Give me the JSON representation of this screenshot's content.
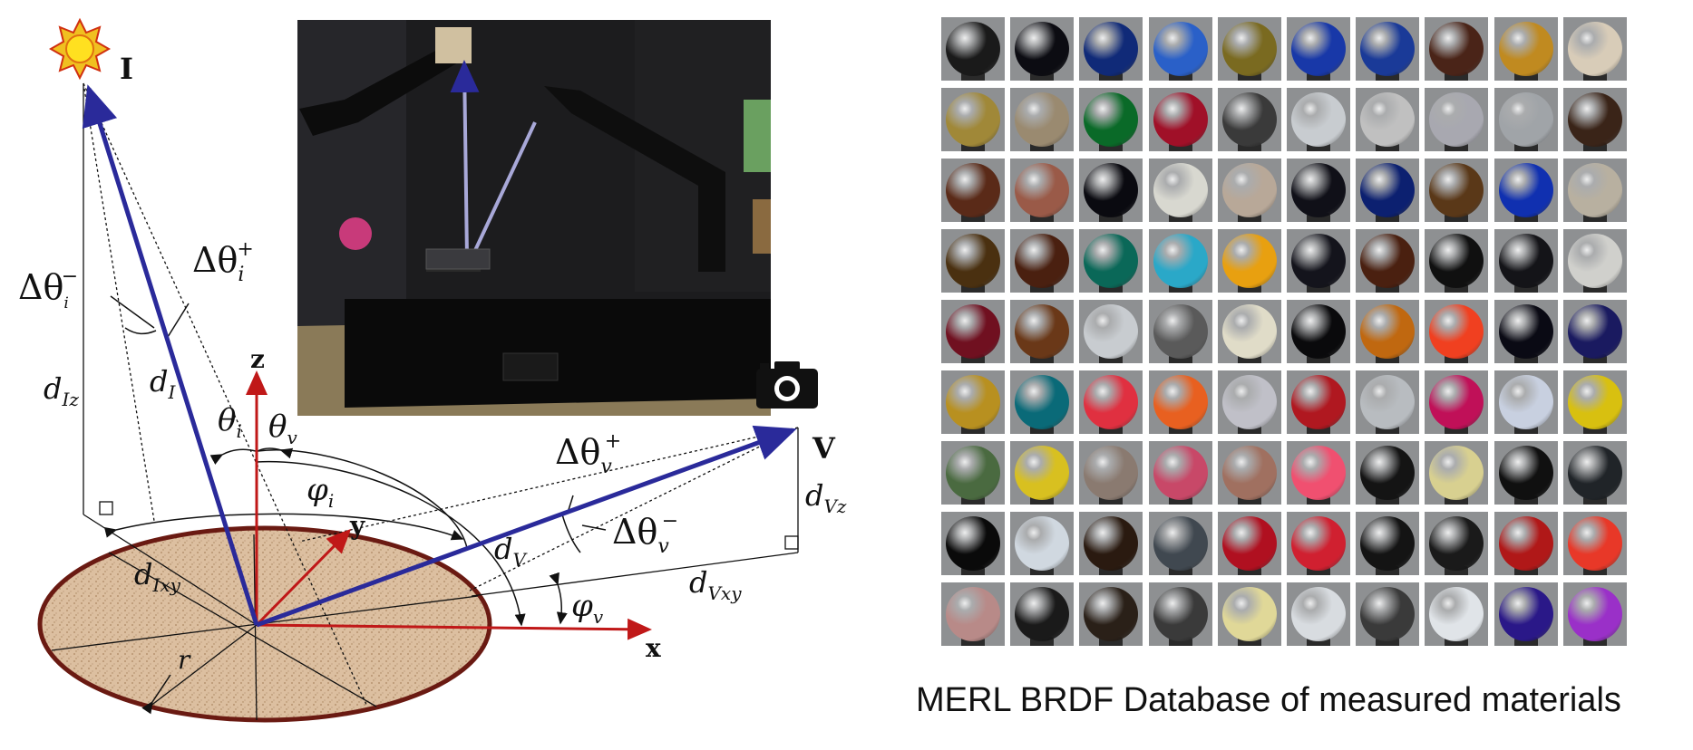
{
  "diagram": {
    "light_label": "I",
    "viewer_label": "V",
    "axis_z": "z",
    "axis_y": "y",
    "axis_x": "x",
    "radius_label": "r",
    "labels": {
      "d_theta_i_minus": {
        "base": "Δθ",
        "sub": "i",
        "sup": "−"
      },
      "d_theta_i_plus": {
        "base": "Δθ",
        "sub": "i",
        "sup": "+"
      },
      "d_theta_v_plus": {
        "base": "Δθ",
        "sub": "v",
        "sup": "+"
      },
      "d_theta_v_minus": {
        "base": "Δθ",
        "sub": "v",
        "sup": "−"
      },
      "d_I": {
        "base": "d",
        "sub": "I"
      },
      "d_Iz": {
        "base": "d",
        "sub": "Iz"
      },
      "d_Ixy": {
        "base": "d",
        "sub": "Ixy"
      },
      "d_V": {
        "base": "d",
        "sub": "V"
      },
      "d_Vz": {
        "base": "d",
        "sub": "Vz"
      },
      "d_Vxy": {
        "base": "d",
        "sub": "Vxy"
      },
      "theta_i": {
        "base": "θ",
        "sub": "i"
      },
      "theta_v": {
        "base": "θ",
        "sub": "v"
      },
      "phi_i": {
        "base": "φ",
        "sub": "i"
      },
      "phi_v": {
        "base": "φ",
        "sub": "v"
      }
    },
    "icons": {
      "light": "sun-icon",
      "viewer": "camera-icon"
    },
    "colors": {
      "ray": "#2a2a9a",
      "axis": "#c01818",
      "disk_fill": "#dcbfa0",
      "disk_edge": "#6a1a12"
    }
  },
  "caption": "MERL BRDF Database of measured materials",
  "materials": {
    "rows": [
      [
        "#1a1a1a",
        "#0c0c12",
        "#102a78",
        "#2a60c8",
        "#7a6a20",
        "#1838a8",
        "#1a3a98",
        "#4a2418",
        "#c08a20",
        "#d8ccb8"
      ],
      [
        "#a08838",
        "#9a8a70",
        "#0a6a28",
        "#a01028",
        "#3a3a3a",
        "#c8ccd0",
        "#c0c0c0",
        "#a8a8b0",
        "#a0a4a8",
        "#3a2418"
      ],
      [
        "#5a2a18",
        "#9a5a48",
        "#0a0a10",
        "#d8d8d0",
        "#b8a898",
        "#101018",
        "#0c2070",
        "#5a3818",
        "#1030b0",
        "#b8b0a0"
      ],
      [
        "#4a3010",
        "#4a2010",
        "#0a6858",
        "#2aa8c8",
        "#e8a010",
        "#14141c",
        "#4a2010",
        "#101010",
        "#141418",
        "#d0d0cc"
      ],
      [
        "#701020",
        "#6a3818",
        "#c8ccd0",
        "#5a5a5a",
        "#e0dcc8",
        "#0a0a0c",
        "#c06810",
        "#f04020",
        "#0a0a14",
        "#1a1a60"
      ],
      [
        "#b89020",
        "#0a6a78",
        "#e03040",
        "#e86020",
        "#c0c0c8",
        "#b01820",
        "#b8bcc0",
        "#c01058",
        "#c8d0e0",
        "#d8c010"
      ],
      [
        "#4a6a40",
        "#d8c020",
        "#8a7a70",
        "#c84868",
        "#a07060",
        "#f05070",
        "#141414",
        "#d8d090",
        "#101010",
        "#202428"
      ],
      [
        "#0a0a0a",
        "#d0d8e0",
        "#2a1a10",
        "#404850",
        "#b01020",
        "#d02030",
        "#141414",
        "#1a1a1a",
        "#b01818",
        "#e83828"
      ],
      [
        "#b88a88",
        "#1a1a1a",
        "#2a2018",
        "#3a3a3a",
        "#e0d898",
        "#d8dce0",
        "#3a3a3a",
        "#e0e4e8",
        "#2a1888",
        "#9a30c8"
      ]
    ]
  }
}
